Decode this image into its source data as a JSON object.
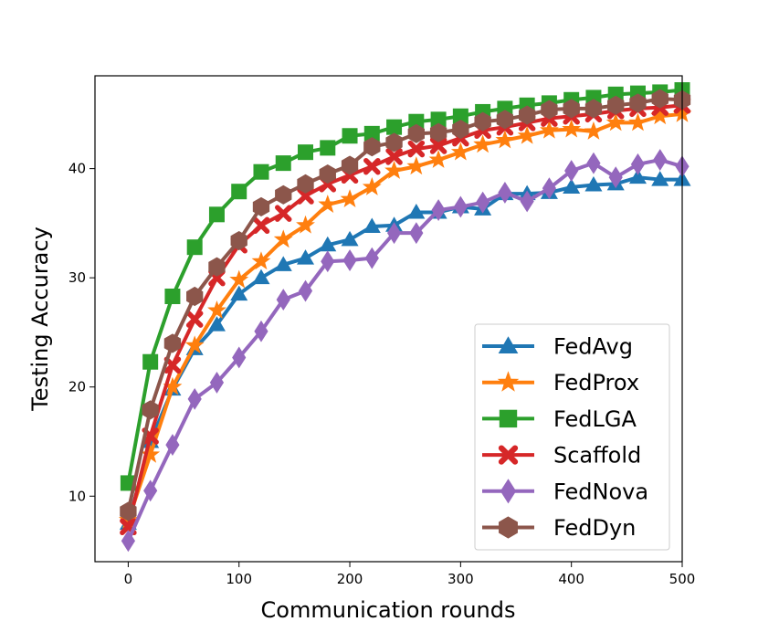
{
  "chart_data": {
    "type": "line",
    "title": "",
    "xlabel": "Communication rounds",
    "ylabel": "Testing Accuracy",
    "xlim": [
      -30,
      500
    ],
    "ylim": [
      4,
      48.5
    ],
    "xticks": [
      0,
      100,
      200,
      300,
      400,
      500
    ],
    "yticks": [
      10,
      20,
      30,
      40
    ],
    "grid": false,
    "legend_position": "lower-right",
    "x": [
      0,
      20,
      40,
      60,
      80,
      100,
      120,
      140,
      160,
      180,
      200,
      220,
      240,
      260,
      280,
      300,
      320,
      340,
      360,
      380,
      400,
      420,
      440,
      460,
      480,
      500
    ],
    "series": [
      {
        "name": "FedAvg",
        "color": "#1f77b4",
        "marker": "triangle",
        "values": [
          7.5,
          15.0,
          19.8,
          23.5,
          25.7,
          28.5,
          30.0,
          31.2,
          31.8,
          33.0,
          33.5,
          34.7,
          34.8,
          36.0,
          36.0,
          36.5,
          36.3,
          37.7,
          37.7,
          37.8,
          38.3,
          38.5,
          38.6,
          39.2,
          39.0,
          39.0
        ]
      },
      {
        "name": "FedProx",
        "color": "#ff7f0e",
        "marker": "star",
        "values": [
          7.8,
          13.8,
          20.0,
          23.8,
          27.0,
          29.8,
          31.5,
          33.5,
          34.8,
          36.7,
          37.2,
          38.3,
          39.8,
          40.2,
          40.8,
          41.5,
          42.2,
          42.6,
          43.0,
          43.5,
          43.6,
          43.4,
          44.2,
          44.2,
          44.8,
          45.0
        ]
      },
      {
        "name": "FedLGA",
        "color": "#2ca02c",
        "marker": "square",
        "values": [
          11.2,
          22.3,
          28.3,
          32.8,
          35.8,
          37.9,
          39.7,
          40.5,
          41.5,
          41.9,
          43.0,
          43.2,
          43.8,
          44.3,
          44.5,
          44.8,
          45.2,
          45.5,
          45.8,
          46.0,
          46.3,
          46.5,
          46.8,
          46.9,
          47.0,
          47.2
        ]
      },
      {
        "name": "Scaffold",
        "color": "#d62728",
        "marker": "x",
        "values": [
          7.2,
          15.5,
          22.0,
          26.2,
          30.0,
          33.0,
          34.8,
          35.9,
          37.5,
          38.6,
          39.4,
          40.2,
          41.1,
          41.8,
          42.1,
          42.8,
          43.5,
          43.8,
          44.2,
          44.6,
          44.8,
          45.0,
          45.3,
          45.5,
          45.6,
          45.8
        ]
      },
      {
        "name": "FedNova",
        "color": "#9467bd",
        "marker": "diamond",
        "values": [
          5.9,
          10.5,
          14.7,
          18.9,
          20.4,
          22.7,
          25.1,
          28.0,
          28.8,
          31.5,
          31.6,
          31.8,
          34.1,
          34.1,
          36.2,
          36.5,
          36.9,
          37.8,
          37.0,
          38.2,
          39.8,
          40.5,
          39.2,
          40.4,
          40.8,
          40.2
        ]
      },
      {
        "name": "FedDyn",
        "color": "#8c564b",
        "marker": "hexagon",
        "values": [
          8.6,
          17.9,
          24.0,
          28.3,
          31.0,
          33.4,
          36.5,
          37.6,
          38.6,
          39.5,
          40.3,
          42.0,
          42.4,
          43.2,
          43.3,
          43.6,
          44.3,
          44.5,
          44.9,
          45.4,
          45.5,
          45.5,
          45.8,
          46.0,
          46.4,
          46.3
        ]
      }
    ]
  }
}
